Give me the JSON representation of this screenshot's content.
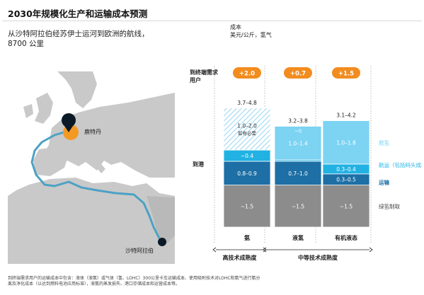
{
  "header": {
    "title": "2030年规模化生产和运输成本预测",
    "subtitle_line1": "从沙特阿拉伯经苏伊士运河到欧洲的航线，",
    "subtitle_line2": "8700 公里"
  },
  "map": {
    "origin_label": "沙特阿拉伯",
    "destination_label": "鹿特丹",
    "colors": {
      "route": "#4da1c4",
      "land": "#c9c9c9",
      "sea": "#ffffff",
      "marker": "#0b1a26",
      "destination_marker": "#f39a24"
    }
  },
  "chart_data": {
    "type": "bar",
    "stacked": true,
    "unit_line1": "成本",
    "unit_line2": "美元/公斤，氢气",
    "row_labels": {
      "end_user": "到终端需求用户",
      "port": "到港"
    },
    "categories": [
      "氨",
      "液氢",
      "有机液态"
    ],
    "category_groups": [
      {
        "label": "高技术成熟度",
        "categories": [
          "氨"
        ]
      },
      {
        "label": "中等技术成熟度",
        "categories": [
          "液氢",
          "有机液态"
        ]
      }
    ],
    "ylim": [
      0,
      4.8
    ],
    "series": [
      {
        "name": "绿氢制取",
        "color": "#8c8c8c",
        "values": [
          1.5,
          1.5,
          1.5
        ],
        "labels": [
          "~1.5",
          "~1.5",
          "~1.5"
        ]
      },
      {
        "name": "运输",
        "color": "#1d6fa5",
        "values": [
          0.85,
          0.85,
          0.4
        ],
        "labels": [
          "0.8–0.9",
          "0.7–1.0",
          "0.3–0.5"
        ]
      },
      {
        "name": "航运（包括码头成本）",
        "color": "#21b2e3",
        "values": [
          0.4,
          0.05,
          0.35
        ],
        "labels": [
          "~0.4",
          "",
          "0.3–0.4"
        ]
      },
      {
        "name": "脱氢",
        "color": "#7cd3f2",
        "values": [
          1.5,
          1.2,
          1.55
        ],
        "labels": [
          "1.0–2.0\n如有必要",
          "1.0–1.4",
          "1.0–1.8"
        ]
      }
    ],
    "segment_notes": {
      "liquid_hydrogen_small": "~0"
    },
    "totals": [
      "3.7–4.8",
      "3.2–3.8",
      "3.1–4.2"
    ],
    "end_user_additions": [
      "+2.0",
      "+0.7",
      "+1.5"
    ],
    "colors": {
      "badge": "#f28c1e",
      "dashed_segment": "#9ed8f0"
    }
  },
  "footnote": {
    "line1": "到终端需求用户的运输成本中包含：液体（液氨）或气体（氢、LOHC）300公里卡车运输成本、使用吸附技术对LOHC和氨气进行氨分",
    "line2": "离及净化成本（以达到燃料电池应用标准），液氨的蒸发损失、港口存储成本和运营成本等。"
  }
}
